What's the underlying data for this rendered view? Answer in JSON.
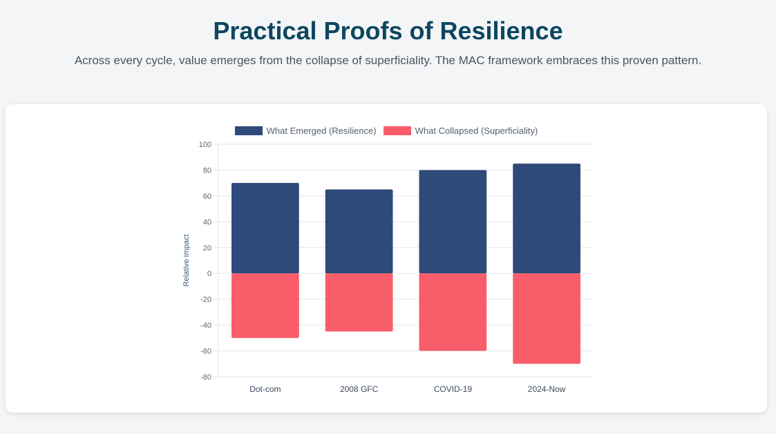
{
  "header": {
    "title": "Practical Proofs of Resilience",
    "subtitle": "Across every cycle, value emerges from the collapse of superficiality. The MAC framework embraces this proven pattern."
  },
  "chart_data": {
    "type": "bar",
    "stacked": true,
    "categories": [
      "Dot-com",
      "2008 GFC",
      "COVID-19",
      "2024-Now"
    ],
    "series": [
      {
        "name": "What Emerged (Resilience)",
        "values": [
          70,
          65,
          80,
          85
        ],
        "color": "#2e4a7a"
      },
      {
        "name": "What Collapsed (Superficiality)",
        "values": [
          -50,
          -45,
          -60,
          -70
        ],
        "color": "#f95d6a"
      }
    ],
    "title": "",
    "xlabel": "",
    "ylabel": "Relative Impact",
    "ylim": [
      -80,
      100
    ],
    "yticks": [
      100,
      80,
      60,
      40,
      20,
      0,
      -20,
      -40,
      -60,
      -80
    ],
    "grid": true,
    "legend": "top-center"
  }
}
